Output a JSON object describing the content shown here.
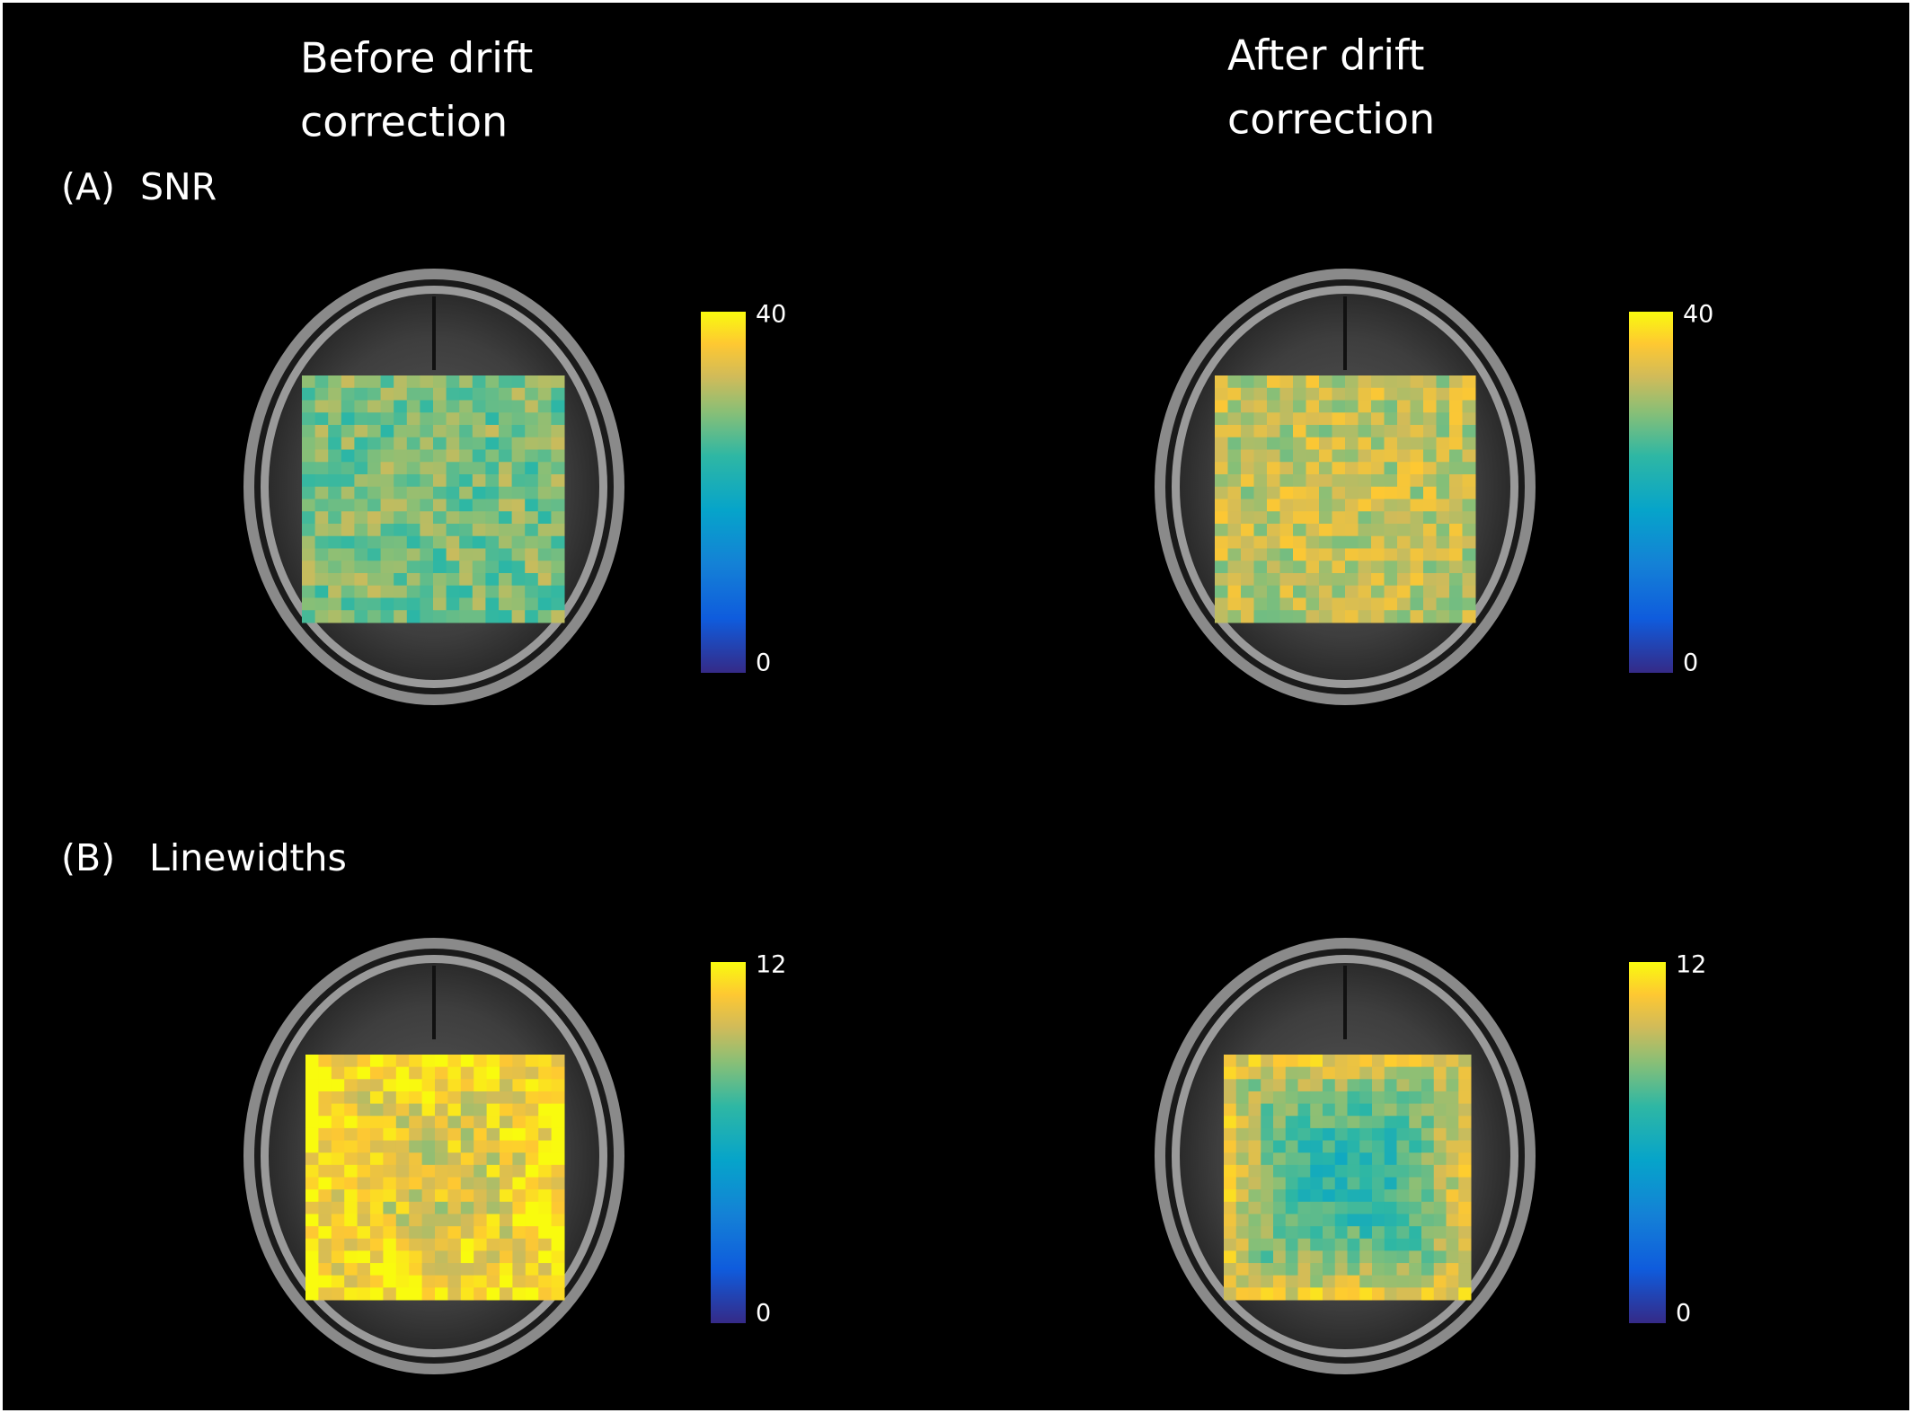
{
  "headers": [
    {
      "lines": [
        "Before drift",
        "correction"
      ]
    },
    {
      "lines": [
        "After drift",
        "correction"
      ]
    }
  ],
  "panels": [
    {
      "label": "(A)",
      "title": "SNR",
      "colorbar": {
        "max": 40,
        "min": 0
      }
    },
    {
      "label": "(B)",
      "title": "Linewidths",
      "colorbar": {
        "max": 12,
        "min": 0
      }
    }
  ]
}
